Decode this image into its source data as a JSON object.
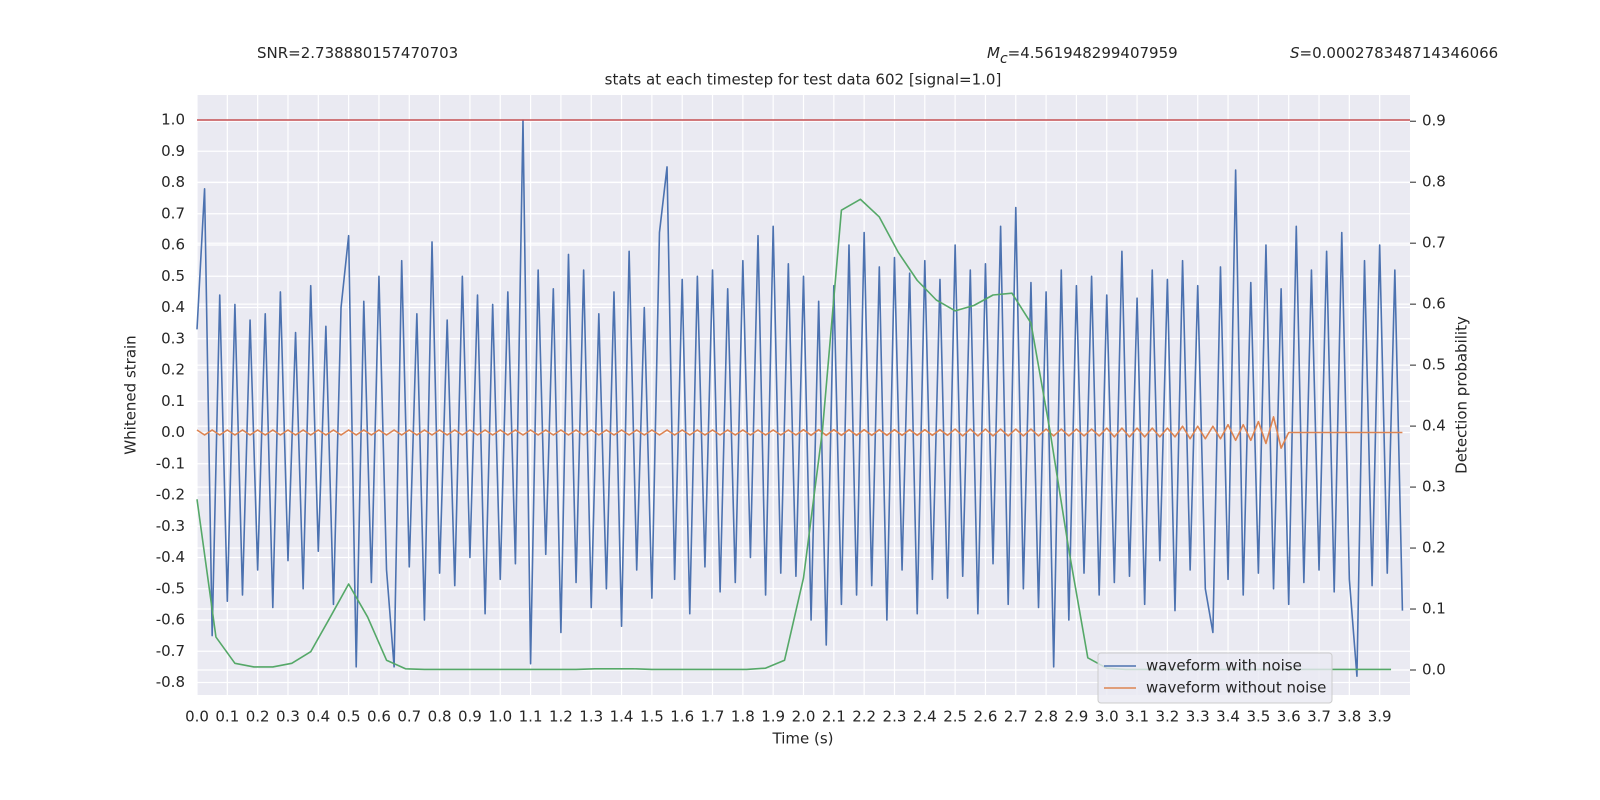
{
  "chart_data": {
    "type": "line",
    "annotations": [
      {
        "text": "SNR=2.738880157470703"
      },
      {
        "symbol": "M",
        "subscript": "c",
        "text": "=4.561948299407959"
      },
      {
        "symbol": "S",
        "text": "=0.000278348714346066"
      }
    ],
    "title": "stats at each timestep for test data 602 [signal=1.0]",
    "x_label": "Time (s)",
    "y_label": "Whitened strain",
    "y2_label": "Detection probability",
    "xlim": [
      0,
      4.0
    ],
    "ylim": [
      -0.84,
      1.08
    ],
    "y2lim": [
      -0.041,
      0.943
    ],
    "xticks": [
      {
        "value": 0,
        "label": "0.0"
      },
      0.1,
      0.2,
      0.3,
      0.4,
      0.5,
      0.6,
      0.7,
      0.8,
      0.9,
      {
        "value": 1,
        "label": "1.0"
      },
      1.1,
      1.2,
      1.3,
      1.4,
      1.5,
      1.6,
      1.7,
      1.8,
      1.9,
      {
        "value": 2,
        "label": "2.0"
      },
      2.1,
      2.2,
      2.3,
      2.4,
      2.5,
      2.6,
      2.7,
      2.8,
      2.9,
      {
        "value": 3,
        "label": "3.0"
      },
      3.1,
      3.2,
      3.3,
      3.4,
      3.5,
      3.6,
      3.7,
      3.8,
      3.9
    ],
    "yticks": [
      -0.8,
      -0.7,
      -0.6,
      -0.5,
      -0.4,
      -0.3,
      -0.2,
      -0.1,
      {
        "value": 0,
        "label": "0.0"
      },
      0.1,
      0.2,
      0.3,
      0.4,
      0.5,
      0.6,
      0.7,
      0.8,
      0.9,
      {
        "value": 1,
        "label": "1.0"
      }
    ],
    "y2ticks": [
      {
        "value": 0,
        "label": "0.0"
      },
      0.1,
      0.2,
      0.3,
      0.4,
      0.5,
      0.6,
      0.7,
      0.8,
      0.9
    ],
    "grid": true,
    "legend": "lower right",
    "hlines": [
      {
        "value": 1.0,
        "color": "#c44e52"
      }
    ],
    "x": [
      0,
      0.025,
      0.05,
      0.075,
      0.1,
      0.125,
      0.15,
      0.175,
      0.2,
      0.225,
      0.25,
      0.275,
      0.3,
      0.325,
      0.35,
      0.375,
      0.4,
      0.425,
      0.45,
      0.475,
      0.5,
      0.525,
      0.55,
      0.575,
      0.6,
      0.625,
      0.65,
      0.675,
      0.7,
      0.725,
      0.75,
      0.775,
      0.8,
      0.825,
      0.85,
      0.875,
      0.9,
      0.925,
      0.95,
      0.975,
      1,
      1.025,
      1.05,
      1.075,
      1.1,
      1.125,
      1.15,
      1.175,
      1.2,
      1.225,
      1.25,
      1.275,
      1.3,
      1.325,
      1.35,
      1.375,
      1.4,
      1.425,
      1.45,
      1.475,
      1.5,
      1.525,
      1.55,
      1.575,
      1.6,
      1.625,
      1.65,
      1.675,
      1.7,
      1.725,
      1.75,
      1.775,
      1.8,
      1.825,
      1.85,
      1.875,
      1.9,
      1.925,
      1.95,
      1.975,
      2,
      2.025,
      2.05,
      2.075,
      2.1,
      2.125,
      2.15,
      2.175,
      2.2,
      2.225,
      2.25,
      2.275,
      2.3,
      2.325,
      2.35,
      2.375,
      2.4,
      2.425,
      2.45,
      2.475,
      2.5,
      2.525,
      2.55,
      2.575,
      2.6,
      2.625,
      2.65,
      2.675,
      2.7,
      2.725,
      2.75,
      2.775,
      2.8,
      2.825,
      2.85,
      2.875,
      2.9,
      2.925,
      2.95,
      2.975,
      3,
      3.025,
      3.05,
      3.075,
      3.1,
      3.125,
      3.15,
      3.175,
      3.2,
      3.225,
      3.25,
      3.275,
      3.3,
      3.325,
      3.35,
      3.375,
      3.4,
      3.425,
      3.45,
      3.475,
      3.5,
      3.525,
      3.55,
      3.575,
      3.6,
      3.625,
      3.65,
      3.675,
      3.7,
      3.725,
      3.75,
      3.775,
      3.8,
      3.825,
      3.85,
      3.875,
      3.9,
      3.925,
      3.95,
      3.975
    ],
    "series": [
      {
        "name": "waveform with noise",
        "color": "#4c72b0",
        "values": [
          0.33,
          0.78,
          -0.65,
          0.44,
          -0.54,
          0.41,
          -0.52,
          0.36,
          -0.44,
          0.38,
          -0.56,
          0.45,
          -0.41,
          0.32,
          -0.5,
          0.47,
          -0.38,
          0.34,
          -0.55,
          0.4,
          0.63,
          -0.75,
          0.42,
          -0.48,
          0.5,
          -0.44,
          -0.75,
          0.55,
          -0.43,
          0.38,
          -0.6,
          0.61,
          -0.45,
          0.36,
          -0.49,
          0.5,
          -0.4,
          0.44,
          -0.58,
          0.41,
          -0.47,
          0.45,
          -0.42,
          1.0,
          -0.74,
          0.52,
          -0.39,
          0.46,
          -0.64,
          0.57,
          -0.48,
          0.52,
          -0.56,
          0.38,
          -0.5,
          0.45,
          -0.62,
          0.58,
          -0.44,
          0.4,
          -0.53,
          0.64,
          0.85,
          -0.47,
          0.49,
          -0.58,
          0.5,
          -0.43,
          0.52,
          -0.51,
          0.46,
          -0.48,
          0.55,
          -0.4,
          0.63,
          -0.52,
          0.66,
          -0.45,
          0.54,
          -0.46,
          0.5,
          -0.6,
          0.42,
          -0.68,
          0.47,
          -0.55,
          0.6,
          -0.52,
          0.64,
          -0.49,
          0.53,
          -0.6,
          0.56,
          -0.44,
          0.51,
          -0.58,
          0.55,
          -0.47,
          0.49,
          -0.53,
          0.6,
          -0.46,
          0.52,
          -0.58,
          0.54,
          -0.42,
          0.66,
          -0.55,
          0.72,
          -0.5,
          0.48,
          -0.56,
          0.45,
          -0.75,
          0.52,
          -0.6,
          0.47,
          -0.45,
          0.5,
          -0.52,
          0.44,
          -0.48,
          0.58,
          -0.46,
          0.43,
          -0.55,
          0.52,
          -0.41,
          0.49,
          -0.57,
          0.55,
          -0.44,
          0.47,
          -0.5,
          -0.64,
          0.53,
          -0.47,
          0.84,
          -0.52,
          0.48,
          -0.45,
          0.6,
          -0.5,
          0.46,
          -0.55,
          0.66,
          -0.48,
          0.52,
          -0.44,
          0.58,
          -0.51,
          0.64,
          -0.47,
          -0.78,
          0.55,
          -0.49,
          0.6,
          -0.45,
          0.52,
          -0.57
        ]
      },
      {
        "name": "waveform without noise",
        "color": "#dd8452",
        "values": [
          0.008,
          -0.008,
          0.008,
          -0.008,
          0.008,
          -0.008,
          0.008,
          -0.008,
          0.008,
          -0.008,
          0.008,
          -0.008,
          0.008,
          -0.008,
          0.008,
          -0.008,
          0.008,
          -0.008,
          0.008,
          -0.008,
          0.008,
          -0.008,
          0.008,
          -0.008,
          0.008,
          -0.008,
          0.008,
          -0.008,
          0.008,
          -0.008,
          0.008,
          -0.008,
          0.008,
          -0.008,
          0.008,
          -0.008,
          0.008,
          -0.008,
          0.008,
          -0.008,
          0.008,
          -0.008,
          0.008,
          -0.008,
          0.008,
          -0.008,
          0.008,
          -0.008,
          0.008,
          -0.008,
          0.008,
          -0.008,
          0.008,
          -0.008,
          0.008,
          -0.008,
          0.008,
          -0.008,
          0.008,
          -0.008,
          0.008,
          -0.008,
          0.008,
          -0.008,
          0.008,
          -0.008,
          0.008,
          -0.008,
          0.008,
          -0.008,
          0.008,
          -0.008,
          0.008,
          -0.008,
          0.008,
          -0.008,
          0.008,
          -0.008,
          0.008,
          -0.008,
          0.009,
          -0.009,
          0.009,
          -0.009,
          0.009,
          -0.009,
          0.009,
          -0.009,
          0.009,
          -0.009,
          0.009,
          -0.009,
          0.009,
          -0.009,
          0.009,
          -0.009,
          0.009,
          -0.009,
          0.009,
          -0.009,
          0.011,
          -0.011,
          0.011,
          -0.011,
          0.011,
          -0.011,
          0.011,
          -0.011,
          0.011,
          -0.011,
          0.011,
          -0.011,
          0.011,
          -0.011,
          0.011,
          -0.011,
          0.011,
          -0.011,
          0.011,
          -0.011,
          0.014,
          -0.014,
          0.014,
          -0.014,
          0.014,
          -0.014,
          0.014,
          -0.014,
          0.014,
          -0.014,
          0.02,
          -0.02,
          0.02,
          -0.02,
          0.02,
          -0.02,
          0.025,
          -0.025,
          0.025,
          -0.025,
          0.035,
          -0.035,
          0.05,
          -0.05,
          0,
          0,
          0,
          0,
          0,
          0,
          0,
          0,
          0,
          0,
          0,
          0,
          0,
          0,
          0,
          0
        ]
      },
      {
        "color": "#55a868",
        "axis": "y2",
        "x": [
          0,
          0.0625,
          0.125,
          0.1875,
          0.25,
          0.3125,
          0.375,
          0.4375,
          0.5,
          0.5625,
          0.625,
          0.6875,
          0.75,
          0.8125,
          0.875,
          0.9375,
          1,
          1.0625,
          1.125,
          1.1875,
          1.25,
          1.3125,
          1.375,
          1.4375,
          1.5,
          1.5625,
          1.625,
          1.6875,
          1.75,
          1.8125,
          1.875,
          1.9375,
          2,
          2.0625,
          2.125,
          2.1875,
          2.25,
          2.3125,
          2.375,
          2.4375,
          2.5,
          2.5625,
          2.625,
          2.6875,
          2.75,
          2.8125,
          2.875,
          2.9375,
          3,
          3.0625,
          3.125,
          3.1875,
          3.25,
          3.3125,
          3.375,
          3.4375,
          3.5,
          3.5625,
          3.625,
          3.6875,
          3.75,
          3.8125,
          3.875,
          3.9375
        ],
        "values": [
          0.28,
          0.054,
          0.011,
          0.005,
          0.005,
          0.011,
          0.03,
          0.085,
          0.141,
          0.087,
          0.016,
          0.002,
          0.001,
          0.001,
          0.001,
          0.001,
          0.001,
          0.001,
          0.001,
          0.001,
          0.001,
          0.002,
          0.002,
          0.002,
          0.001,
          0.001,
          0.001,
          0.001,
          0.001,
          0.001,
          0.003,
          0.016,
          0.151,
          0.393,
          0.754,
          0.772,
          0.743,
          0.685,
          0.639,
          0.607,
          0.589,
          0.598,
          0.615,
          0.618,
          0.569,
          0.393,
          0.197,
          0.02,
          0.003,
          0.001,
          0.001,
          0.001,
          0.001,
          0.001,
          0.001,
          0.001,
          0.001,
          0.001,
          0.001,
          0.001,
          0.001,
          0.001,
          0.001,
          0.001
        ]
      }
    ]
  }
}
